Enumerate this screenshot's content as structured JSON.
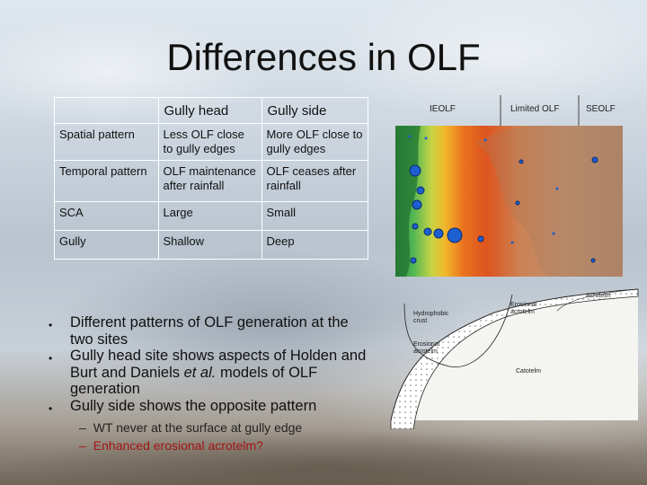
{
  "title": "Differences in OLF",
  "table": {
    "headers": [
      "",
      "Gully head",
      "Gully side"
    ],
    "rows": [
      {
        "label": "Spatial pattern",
        "head": "Less OLF close to gully edges",
        "side": "More OLF close to gully edges"
      },
      {
        "label": "Temporal pattern",
        "head": "OLF maintenance after rainfall",
        "side": "OLF ceases after rainfall"
      },
      {
        "label": "SCA",
        "head": "Large",
        "side": "Small"
      },
      {
        "label": "Gully",
        "head": "Shallow",
        "side": "Deep"
      }
    ]
  },
  "bullets": {
    "b1": "Different patterns of OLF generation at the two sites",
    "b2_pre": "Gully head site shows aspects of Holden and Burt and Daniels ",
    "b2_em": "et al.",
    "b2_post": " models of OLF generation",
    "b3": "Gully side shows the opposite pattern"
  },
  "subbullets": {
    "dash": "–",
    "s1": "WT never at the surface at gully edge",
    "s2": "Enhanced erosional acrotelm?"
  },
  "map_headers": {
    "ieolf": "IEOLF",
    "limited": "Limited OLF",
    "seolf": "SEOLF"
  },
  "diagram_labels": {
    "hydrophobic": "Hydrophobic crust",
    "erosional_acrotelm": "Erosional acrotelm",
    "erosional_acrotelm_2": "Erosional acrotelm",
    "catotelm": "Catotelm",
    "acrotelm": "Acrotelm"
  },
  "colors": {
    "highlight": "#a31515"
  }
}
